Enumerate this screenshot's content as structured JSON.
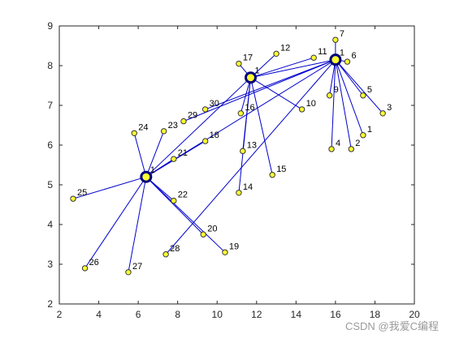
{
  "watermark": "CSDN @我爱C编程",
  "chart_data": {
    "type": "scatter",
    "title": "",
    "xlabel": "",
    "ylabel": "",
    "xlim": [
      2,
      20
    ],
    "ylim": [
      2,
      9
    ],
    "xticks": [
      2,
      4,
      6,
      8,
      10,
      12,
      14,
      16,
      18,
      20
    ],
    "yticks": [
      2,
      3,
      4,
      5,
      6,
      7,
      8,
      9
    ],
    "grid": false,
    "colors": {
      "edge": "#0000cc",
      "node_fill": "#ffff33",
      "node_stroke": "#333333",
      "hub_ring": "#00007a"
    },
    "hubs": [
      {
        "id": "h1",
        "label": "1",
        "x": 6.4,
        "y": 5.2
      },
      {
        "id": "h2",
        "label": "1",
        "x": 11.7,
        "y": 7.7
      },
      {
        "id": "h3",
        "label": "1",
        "x": 16.0,
        "y": 8.15
      }
    ],
    "nodes": [
      {
        "label": "1",
        "x": 17.4,
        "y": 6.25,
        "hub": "h3"
      },
      {
        "label": "2",
        "x": 16.8,
        "y": 5.9,
        "hub": "h3"
      },
      {
        "label": "3",
        "x": 18.4,
        "y": 6.8,
        "hub": "h3"
      },
      {
        "label": "4",
        "x": 15.8,
        "y": 5.9,
        "hub": "h3"
      },
      {
        "label": "5",
        "x": 17.4,
        "y": 7.25,
        "hub": "h3"
      },
      {
        "label": "6",
        "x": 16.6,
        "y": 8.1,
        "hub": "h3"
      },
      {
        "label": "7",
        "x": 16.0,
        "y": 8.65,
        "hub": "h3"
      },
      {
        "label": "9",
        "x": 15.7,
        "y": 7.25,
        "hub": "h3"
      },
      {
        "label": "10",
        "x": 14.3,
        "y": 6.9,
        "hub": "h2"
      },
      {
        "label": "11",
        "x": 14.9,
        "y": 8.2,
        "hub": "h2"
      },
      {
        "label": "12",
        "x": 13.0,
        "y": 8.3,
        "hub": "h2"
      },
      {
        "label": "13",
        "x": 11.3,
        "y": 5.85,
        "hub": "h2"
      },
      {
        "label": "14",
        "x": 11.1,
        "y": 4.8,
        "hub": "h2"
      },
      {
        "label": "15",
        "x": 12.8,
        "y": 5.25,
        "hub": "h2"
      },
      {
        "label": "16",
        "x": 11.2,
        "y": 6.8,
        "hub": "h2"
      },
      {
        "label": "17",
        "x": 11.1,
        "y": 8.05,
        "hub": "h2"
      },
      {
        "label": "18",
        "x": 9.4,
        "y": 6.1,
        "hub": "h1"
      },
      {
        "label": "19",
        "x": 10.4,
        "y": 3.3,
        "hub": "h1"
      },
      {
        "label": "20",
        "x": 9.3,
        "y": 3.75,
        "hub": "h1"
      },
      {
        "label": "21",
        "x": 7.8,
        "y": 5.65,
        "hub": "h1"
      },
      {
        "label": "22",
        "x": 7.8,
        "y": 4.6,
        "hub": "h1"
      },
      {
        "label": "23",
        "x": 7.3,
        "y": 6.35,
        "hub": "h1"
      },
      {
        "label": "24",
        "x": 5.8,
        "y": 6.3,
        "hub": "h1"
      },
      {
        "label": "25",
        "x": 2.7,
        "y": 4.65,
        "hub": "h1"
      },
      {
        "label": "26",
        "x": 3.3,
        "y": 2.9,
        "hub": "h1"
      },
      {
        "label": "27",
        "x": 5.5,
        "y": 2.8,
        "hub": "h1"
      },
      {
        "label": "28",
        "x": 7.4,
        "y": 3.25,
        "hub": "h3"
      },
      {
        "label": "29",
        "x": 8.3,
        "y": 6.6,
        "hub": "h3"
      },
      {
        "label": "30",
        "x": 9.4,
        "y": 6.9,
        "hub": "h3"
      }
    ],
    "extra_edges": [
      [
        "h1",
        "h2"
      ],
      [
        "h1",
        "h3"
      ],
      [
        "h2",
        "h3"
      ]
    ]
  }
}
